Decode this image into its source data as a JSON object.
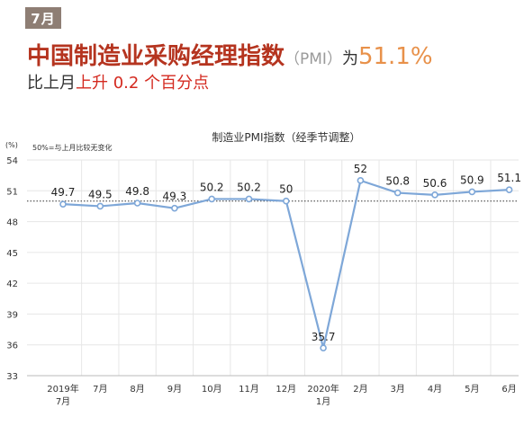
{
  "badge": {
    "month": "7月"
  },
  "headline": {
    "title": "中国制造业采购经理指数",
    "paren": "（PMI）",
    "wei": "为",
    "value": "51.1%"
  },
  "subline": {
    "prefix": "比上月",
    "highlight": "上升 0.2 个百分点"
  },
  "chart_data": {
    "type": "line",
    "title": "制造业PMI指数（经季节调整）",
    "unit_label": "(%)",
    "note": "50%=与上月比较无变化",
    "categories": [
      "2019年\n7月",
      "7月",
      "8月",
      "9月",
      "10月",
      "11月",
      "12月",
      "2020年\n1月",
      "2月",
      "3月",
      "4月",
      "5月",
      "6月"
    ],
    "series": [
      {
        "values": [
          49.7,
          49.5,
          49.8,
          49.3,
          50.2,
          50.2,
          50,
          35.7,
          52,
          50.8,
          50.6,
          50.9,
          51.1
        ],
        "labels": [
          "49.7",
          "49.5",
          "49.8",
          "49.3",
          "50.2",
          "50.2",
          "50",
          "35.7",
          "52",
          "50.8",
          "50.6",
          "50.9",
          "51.1"
        ]
      }
    ],
    "yticks": [
      33,
      36,
      39,
      42,
      45,
      48,
      51,
      54
    ],
    "ylim": [
      33,
      54
    ],
    "reference_line": 50,
    "grid": true,
    "colors": {
      "line": "#7ea7d8",
      "marker_fill": "#ffffff",
      "reference": "#333333",
      "grid": "#e6e6e6"
    }
  }
}
